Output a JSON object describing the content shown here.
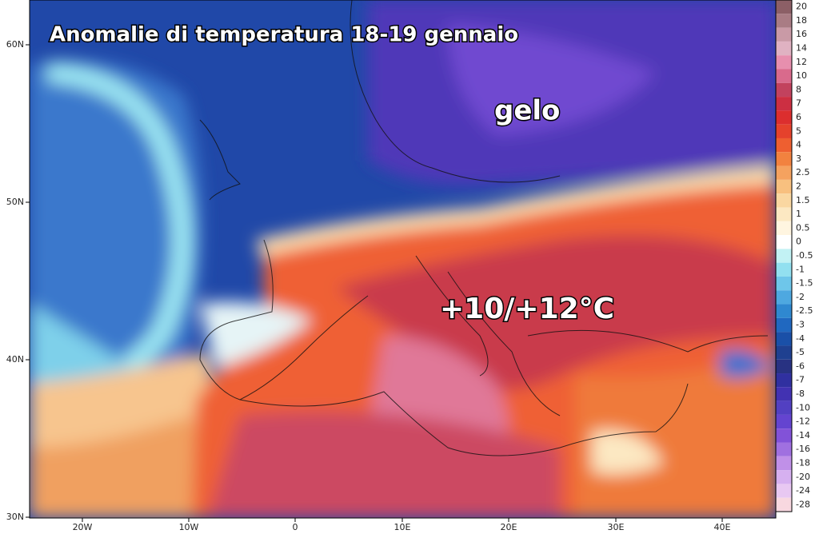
{
  "title": "Anomalie di temperatura 18-19 gennaio",
  "annotations": [
    "gelo",
    "+10/+12°C"
  ],
  "latitude_labels": [
    "60N",
    "50N",
    "40N",
    "30N"
  ],
  "longitude_labels": [
    "20W",
    "10W",
    "0",
    "10E",
    "20E",
    "30E",
    "40E"
  ],
  "colorbar": [
    {
      "label": "20",
      "color": "#8c5f66"
    },
    {
      "label": "18",
      "color": "#a97c84"
    },
    {
      "label": "16",
      "color": "#c99aa6"
    },
    {
      "label": "14",
      "color": "#e0b2c2"
    },
    {
      "label": "12",
      "color": "#e78fae"
    },
    {
      "label": "10",
      "color": "#d96a8c"
    },
    {
      "label": "8",
      "color": "#c2425e"
    },
    {
      "label": "7",
      "color": "#cc2f42"
    },
    {
      "label": "6",
      "color": "#dc2e2e"
    },
    {
      "label": "5",
      "color": "#e5422c"
    },
    {
      "label": "4",
      "color": "#ee5f30"
    },
    {
      "label": "3",
      "color": "#f2823f"
    },
    {
      "label": "2.5",
      "color": "#f5a25f"
    },
    {
      "label": "2",
      "color": "#f8c07f"
    },
    {
      "label": "1.5",
      "color": "#fad7a1"
    },
    {
      "label": "1",
      "color": "#fce8c2"
    },
    {
      "label": "0.5",
      "color": "#fff5e0"
    },
    {
      "label": "0",
      "color": "#ffffff"
    },
    {
      "label": "-0.5",
      "color": "#c2f2f4"
    },
    {
      "label": "-1",
      "color": "#92e0f0"
    },
    {
      "label": "-1.5",
      "color": "#6ec6ea"
    },
    {
      "label": "-2",
      "color": "#4ea8e0"
    },
    {
      "label": "-2.5",
      "color": "#2f88d0"
    },
    {
      "label": "-3",
      "color": "#2068c0"
    },
    {
      "label": "-4",
      "color": "#1a50a8"
    },
    {
      "label": "-5",
      "color": "#1f4090"
    },
    {
      "label": "-6",
      "color": "#283282"
    },
    {
      "label": "-7",
      "color": "#3030a0"
    },
    {
      "label": "-8",
      "color": "#4232b2"
    },
    {
      "label": "-10",
      "color": "#5240c2"
    },
    {
      "label": "-12",
      "color": "#6444d0"
    },
    {
      "label": "-14",
      "color": "#8252d8"
    },
    {
      "label": "-16",
      "color": "#a070e0"
    },
    {
      "label": "-18",
      "color": "#c090e8"
    },
    {
      "label": "-20",
      "color": "#d6b0f0"
    },
    {
      "label": "-24",
      "color": "#e8c8f2"
    },
    {
      "label": "-28",
      "color": "#f8d8e0"
    }
  ]
}
